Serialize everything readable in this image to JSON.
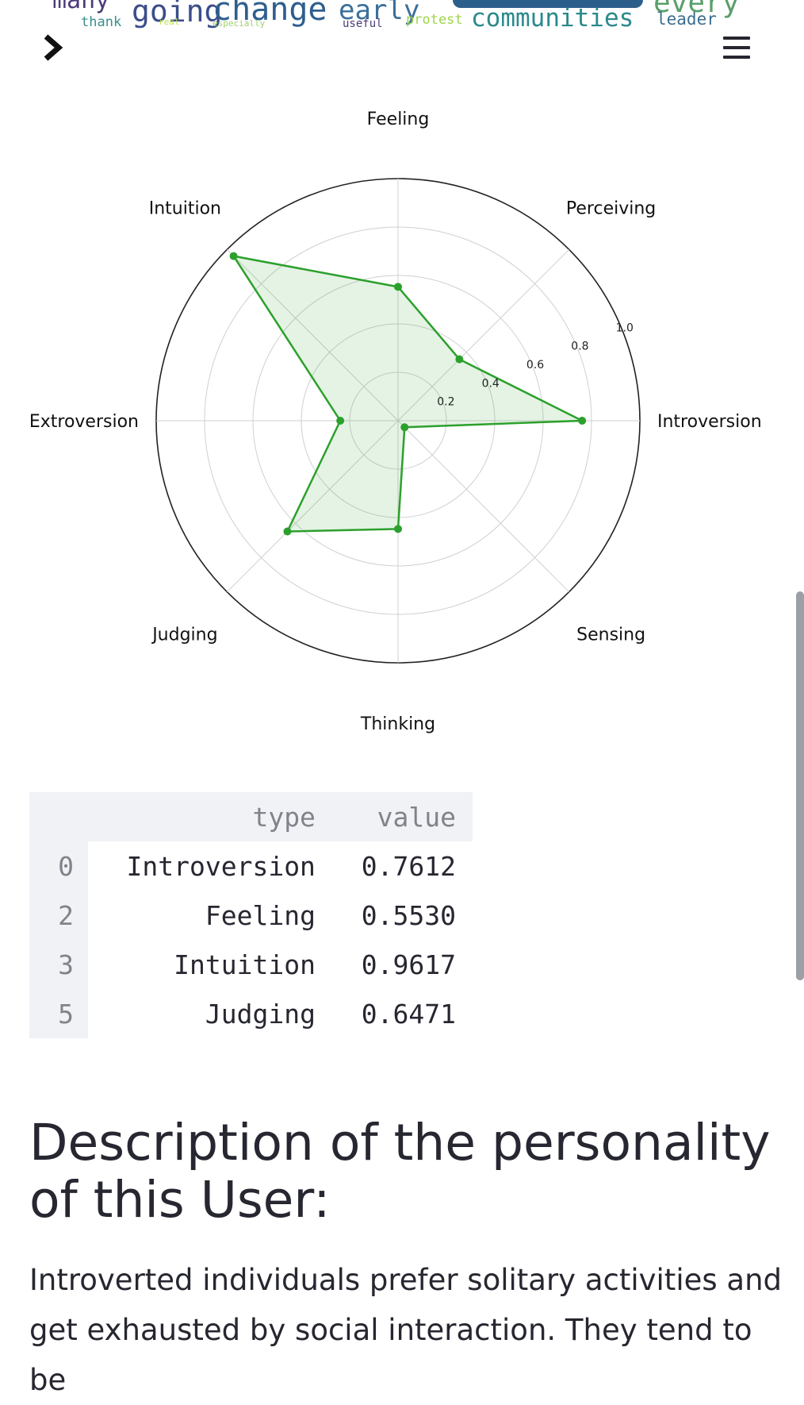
{
  "wordcloud": {
    "words": [
      {
        "text": "many",
        "color": "#4c3b7a"
      },
      {
        "text": "thank",
        "color": "#3a8f8c"
      },
      {
        "text": "going",
        "color": "#3b4d8a"
      },
      {
        "text": "change",
        "color": "#2f5e8e"
      },
      {
        "text": "early",
        "color": "#3a6f9a"
      },
      {
        "text": "useful",
        "color": "#4b3a79"
      },
      {
        "text": "protest",
        "color": "#9ed44a"
      },
      {
        "text": "communities",
        "color": "#2a8a8c"
      },
      {
        "text": "every",
        "color": "#5a9f6a"
      },
      {
        "text": "leader",
        "color": "#3c6d90"
      },
      {
        "text": "real",
        "color": "#bde34a"
      },
      {
        "text": "especially",
        "color": "#9fd26c"
      }
    ]
  },
  "nav": {
    "expand_icon": "chevron-right-icon",
    "menu_icon": "hamburger-menu-icon"
  },
  "chart_data": {
    "type": "radar",
    "categories": [
      "Introversion",
      "Perceiving",
      "Feeling",
      "Intuition",
      "Extroversion",
      "Judging",
      "Thinking",
      "Sensing"
    ],
    "series": [
      {
        "values": [
          0.7612,
          0.3588,
          0.553,
          0.9617,
          0.2388,
          0.6471,
          0.447,
          0.0383
        ],
        "color": "#2ca02c"
      }
    ],
    "rticks": [
      "0.2",
      "0.4",
      "0.6",
      "0.8",
      "1.0"
    ],
    "rlim": [
      0,
      1
    ],
    "grid": true
  },
  "table": {
    "columns": [
      "type",
      "value"
    ],
    "rows": [
      {
        "index": "0",
        "type": "Introversion",
        "value": "0.7612"
      },
      {
        "index": "2",
        "type": "Feeling",
        "value": "0.5530"
      },
      {
        "index": "3",
        "type": "Intuition",
        "value": "0.9617"
      },
      {
        "index": "5",
        "type": "Judging",
        "value": "0.6471"
      }
    ]
  },
  "description": {
    "heading": "Description of the personality of this User:",
    "text": "Introverted individuals prefer solitary activities and get exhausted by social interaction. They tend to be"
  }
}
